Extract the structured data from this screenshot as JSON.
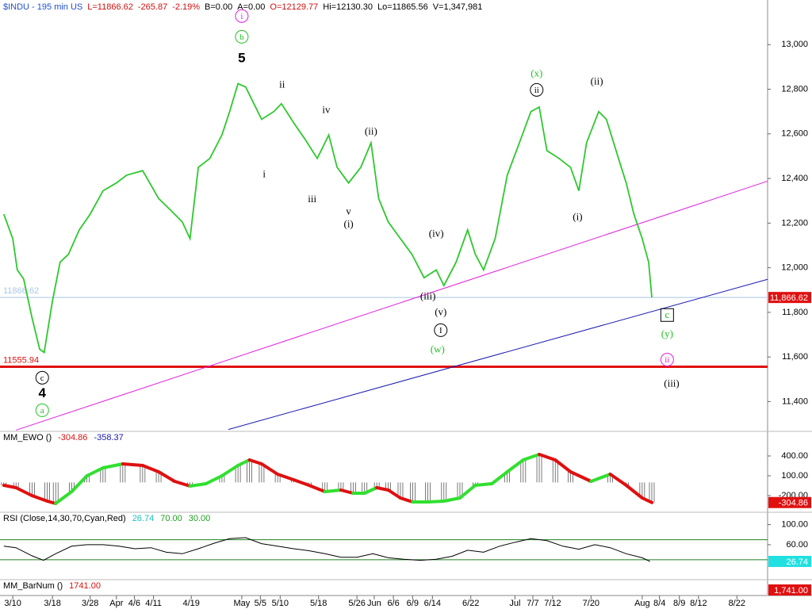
{
  "header": [
    {
      "text": "$INDU - 195 min  US",
      "color": "#1f4fd0"
    },
    {
      "text": "L=11866.62",
      "color": "#d01010"
    },
    {
      "text": "-265.87",
      "color": "#d01010"
    },
    {
      "text": "-2.19%",
      "color": "#d01010"
    },
    {
      "text": "B=0.00",
      "color": "#000000"
    },
    {
      "text": "A=0.00",
      "color": "#000000"
    },
    {
      "text": "O=12129.77",
      "color": "#d01010"
    },
    {
      "text": "Hi=12130.30",
      "color": "#000000"
    },
    {
      "text": "Lo=11865.56",
      "color": "#000000"
    },
    {
      "text": "V=1,347,981",
      "color": "#000000"
    }
  ],
  "chart_data": [
    {
      "type": "line",
      "color": "#2ec82e",
      "xlim": [
        0,
        120
      ],
      "ylim": [
        11270,
        13200
      ],
      "xticks": [
        {
          "value": 2,
          "label": "3/10"
        },
        {
          "value": 8.2,
          "label": "3/18"
        },
        {
          "value": 14.1,
          "label": "3/28"
        },
        {
          "value": 18.2,
          "label": "Apr"
        },
        {
          "value": 21,
          "label": "4/6"
        },
        {
          "value": 24,
          "label": "4/11"
        },
        {
          "value": 29.9,
          "label": "4/19"
        },
        {
          "value": 37.8,
          "label": "May"
        },
        {
          "value": 40.7,
          "label": "5/5"
        },
        {
          "value": 43.8,
          "label": "5/10"
        },
        {
          "value": 49.8,
          "label": "5/18"
        },
        {
          "value": 55.8,
          "label": "5/26"
        },
        {
          "value": 58.5,
          "label": "Jun"
        },
        {
          "value": 61.5,
          "label": "6/6"
        },
        {
          "value": 64.5,
          "label": "6/9"
        },
        {
          "value": 67.6,
          "label": "6/14"
        },
        {
          "value": 73.6,
          "label": "6/22"
        },
        {
          "value": 80.5,
          "label": "Jul"
        },
        {
          "value": 83.3,
          "label": "7/7"
        },
        {
          "value": 86.4,
          "label": "7/12"
        },
        {
          "value": 92.4,
          "label": "7/20"
        },
        {
          "value": 100.4,
          "label": "Aug"
        },
        {
          "value": 103.1,
          "label": "8/4"
        },
        {
          "value": 106.2,
          "label": "8/9"
        },
        {
          "value": 109.2,
          "label": "8/12"
        },
        {
          "value": 115.2,
          "label": "8/22"
        }
      ],
      "yticks": [
        {
          "value": 11400,
          "label": "11,400"
        },
        {
          "value": 11600,
          "label": "11,600"
        },
        {
          "value": 11800,
          "label": "11,800"
        },
        {
          "value": 12000,
          "label": "12,000"
        },
        {
          "value": 12200,
          "label": "12,200"
        },
        {
          "value": 12400,
          "label": "12,400"
        },
        {
          "value": 12600,
          "label": "12,600"
        },
        {
          "value": 12800,
          "label": "12,800"
        },
        {
          "value": 13000,
          "label": "13,000"
        }
      ],
      "x": [
        0.6,
        2,
        2.7,
        3.7,
        5,
        6.2,
        6.9,
        8.2,
        9.4,
        10.7,
        12.4,
        14.1,
        16.1,
        18.2,
        19.8,
        22.3,
        24.8,
        26.6,
        28.5,
        29.7,
        31,
        32.8,
        34.7,
        35.9,
        37.2,
        38.4,
        39.7,
        40.9,
        42.8,
        44,
        45.9,
        47.7,
        49.6,
        51.4,
        52.7,
        54.5,
        56.4,
        58,
        59.2,
        60.7,
        62.6,
        64.4,
        66.3,
        68.2,
        69.4,
        71.3,
        73.1,
        74.3,
        75.6,
        77.4,
        79.3,
        81.2,
        83,
        84.3,
        85.5,
        87.4,
        89.2,
        90.5,
        91.7,
        93.6,
        94.8,
        96.7,
        97.9,
        99.1,
        100.4,
        101.4,
        101.9
      ],
      "values": [
        12240,
        12130,
        11990,
        11950,
        11777,
        11635,
        11620,
        11850,
        12025,
        12060,
        12170,
        12240,
        12345,
        12380,
        12415,
        12435,
        12310,
        12260,
        12205,
        12130,
        12450,
        12490,
        12595,
        12700,
        12825,
        12810,
        12735,
        12665,
        12700,
        12735,
        12650,
        12575,
        12490,
        12595,
        12450,
        12380,
        12450,
        12560,
        12310,
        12205,
        12130,
        12060,
        11955,
        11990,
        11920,
        12025,
        12170,
        12060,
        11990,
        12130,
        12415,
        12560,
        12700,
        12720,
        12525,
        12490,
        12450,
        12345,
        12560,
        12700,
        12665,
        12490,
        12380,
        12240,
        12130,
        12025,
        11866.62
      ],
      "last": {
        "value": 11866.62,
        "label": "11,866.62",
        "color": "#e01010"
      },
      "hlines": [
        {
          "value": 11555.94,
          "color": "#e01010"
        },
        {
          "value": 11866.62,
          "color": "#a8c8e8"
        }
      ],
      "trendlines": [
        {
          "x": [
            2.5,
            120
          ],
          "y": [
            11272,
            12388
          ],
          "color": "#e020e0"
        },
        {
          "x": [
            35.7,
            120
          ],
          "y": [
            11275,
            11948
          ],
          "color": "#1a1ab0"
        }
      ],
      "annotations": [
        {
          "text": "i",
          "x": 37.8,
          "y": 13128,
          "color": "#e020e0",
          "shape": "circle"
        },
        {
          "text": "b",
          "x": 37.8,
          "y": 13035,
          "color": "#20c020",
          "shape": "circle"
        },
        {
          "text": "5",
          "x": 37.8,
          "y": 12940,
          "color": "#000000",
          "shape": "big"
        },
        {
          "text": "ii",
          "x": 44.1,
          "y": 12822,
          "color": "#000000",
          "shape": "none"
        },
        {
          "text": "iv",
          "x": 51,
          "y": 12708,
          "color": "#000000",
          "shape": "none"
        },
        {
          "text": "(ii)",
          "x": 58,
          "y": 12612,
          "color": "#000000",
          "shape": "none"
        },
        {
          "text": "i",
          "x": 41.3,
          "y": 12420,
          "color": "#000000",
          "shape": "none"
        },
        {
          "text": "iii",
          "x": 48.8,
          "y": 12307,
          "color": "#000000",
          "shape": "none"
        },
        {
          "text": "v",
          "x": 54.5,
          "y": 12253,
          "color": "#000000",
          "shape": "none"
        },
        {
          "text": "(i)",
          "x": 54.5,
          "y": 12196,
          "color": "#000000",
          "shape": "none"
        },
        {
          "text": "(iv)",
          "x": 68.2,
          "y": 12154,
          "color": "#000000",
          "shape": "none"
        },
        {
          "text": "(iii)",
          "x": 66.9,
          "y": 11873,
          "color": "#000000",
          "shape": "none"
        },
        {
          "text": "(v)",
          "x": 68.9,
          "y": 11802,
          "color": "#000000",
          "shape": "none"
        },
        {
          "text": "I",
          "x": 68.9,
          "y": 11720,
          "color": "#000000",
          "shape": "circle"
        },
        {
          "text": "(w)",
          "x": 68.4,
          "y": 11635,
          "color": "#20c020",
          "shape": "none"
        },
        {
          "text": "(x)",
          "x": 83.9,
          "y": 12872,
          "color": "#20c020",
          "shape": "none"
        },
        {
          "text": "ii",
          "x": 83.9,
          "y": 12797,
          "color": "#000000",
          "shape": "circle"
        },
        {
          "text": "(ii)",
          "x": 93.3,
          "y": 12836,
          "color": "#000000",
          "shape": "none"
        },
        {
          "text": "(i)",
          "x": 90.3,
          "y": 12228,
          "color": "#000000",
          "shape": "none"
        },
        {
          "text": "c",
          "x": 104.3,
          "y": 11788,
          "color": "#20c020",
          "shape": "box"
        },
        {
          "text": "(y)",
          "x": 104.3,
          "y": 11703,
          "color": "#20c020",
          "shape": "none"
        },
        {
          "text": "ii",
          "x": 104.3,
          "y": 11588,
          "color": "#e020e0",
          "shape": "circle"
        },
        {
          "text": "(iii)",
          "x": 105,
          "y": 11482,
          "color": "#000000",
          "shape": "none"
        },
        {
          "text": "c",
          "x": 6.6,
          "y": 11507,
          "color": "#000000",
          "shape": "circle"
        },
        {
          "text": "4",
          "x": 6.6,
          "y": 11439,
          "color": "#000000",
          "shape": "big"
        },
        {
          "text": "a",
          "x": 6.6,
          "y": 11361,
          "color": "#20c020",
          "shape": "circle"
        }
      ]
    },
    {
      "type": "oscillator",
      "title": "MM_EWO ()",
      "readouts": [
        {
          "text": "-304.86",
          "color": "#e01010"
        },
        {
          "text": "-358.37",
          "color": "#1a1ab0"
        }
      ],
      "ylim": [
        -440,
        760
      ],
      "yticks": [
        {
          "value": 400,
          "label": "400.00"
        },
        {
          "value": 100,
          "label": "100.00"
        },
        {
          "value": -200,
          "label": "-200.00"
        }
      ],
      "x": [
        0.6,
        2.5,
        5,
        7.4,
        8.7,
        11.2,
        13.6,
        16.1,
        19.2,
        22.3,
        24.8,
        27.3,
        29.7,
        32.2,
        34.7,
        37.2,
        39,
        40.9,
        43.4,
        45.9,
        48.3,
        50.8,
        53.3,
        55.2,
        57,
        58.9,
        60.7,
        62.6,
        64.5,
        66.9,
        69.4,
        71.9,
        74.3,
        76.9,
        79.3,
        81.8,
        84.3,
        86.8,
        89.2,
        92.4,
        95.4,
        97.9,
        100.4,
        101.9
      ],
      "values": [
        -44,
        -80,
        -200,
        -284,
        -320,
        -140,
        100,
        220,
        280,
        256,
        160,
        16,
        -56,
        -20,
        100,
        256,
        340,
        280,
        124,
        40,
        -44,
        -140,
        -116,
        -164,
        -164,
        -80,
        -116,
        -236,
        -296,
        -296,
        -284,
        -236,
        -44,
        -20,
        160,
        340,
        424,
        340,
        160,
        16,
        124,
        -44,
        -236,
        -304.86
      ],
      "last": {
        "value": -304.86,
        "label": "-304.86",
        "color": "#e01010"
      },
      "rise_color": "#30e030",
      "fall_color": "#e01010"
    },
    {
      "type": "line",
      "title": "RSI (Close,14,30,70,Cyan,Red)",
      "readouts": [
        {
          "text": "26.74",
          "color": "#20c0c0"
        },
        {
          "text": "70.00",
          "color": "#20a020"
        },
        {
          "text": "30.00",
          "color": "#20a020"
        }
      ],
      "color": "#000000",
      "ylim": [
        -8,
        123
      ],
      "yticks": [
        {
          "value": 100,
          "label": "100.00"
        },
        {
          "value": 60,
          "label": "60.00"
        }
      ],
      "hlines": [
        {
          "value": 70,
          "color": "#208020"
        },
        {
          "value": 30,
          "color": "#208020"
        }
      ],
      "x": [
        0.6,
        2.5,
        5,
        6.8,
        8.7,
        11.2,
        13.6,
        16.1,
        18.6,
        21.1,
        23.6,
        26,
        28.5,
        31,
        33.5,
        35.9,
        38.4,
        40.9,
        43.4,
        45.9,
        48.3,
        50.8,
        53.3,
        55.8,
        58.3,
        60.7,
        63.2,
        65.7,
        68.2,
        70.7,
        73.1,
        75.6,
        78.1,
        80.6,
        83,
        85.5,
        88,
        90.5,
        93,
        95.4,
        97.9,
        100.4,
        101.6
      ],
      "values": [
        57,
        54,
        38,
        29,
        42,
        57,
        60,
        60,
        57,
        52,
        54,
        45,
        42,
        52,
        63,
        72,
        74,
        62,
        57,
        52,
        48,
        42,
        35,
        35,
        42,
        34,
        31,
        29,
        31,
        37,
        49,
        45,
        57,
        65,
        72,
        68,
        57,
        51,
        60,
        54,
        42,
        34,
        26.74
      ],
      "last": {
        "value": 26.74,
        "label": "26.74",
        "color": "#20e0e0"
      }
    },
    {
      "type": "readout",
      "title": "MM_BarNum ()",
      "readouts": [
        {
          "text": "1741.00",
          "color": "#e01010"
        }
      ],
      "last": {
        "label": "1,741.00",
        "color": "#e01010"
      }
    }
  ]
}
